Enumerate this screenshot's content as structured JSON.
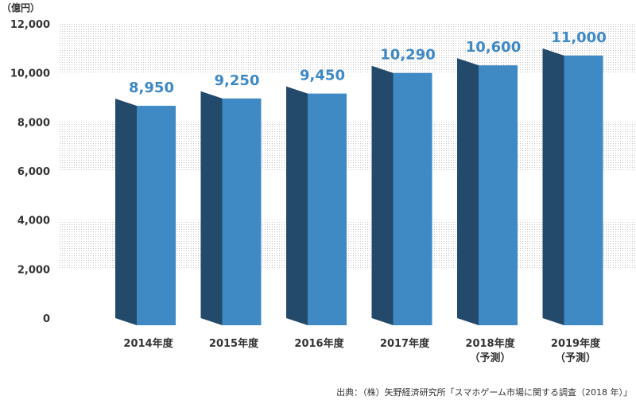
{
  "chart_data": {
    "type": "bar",
    "unit": "（億円）",
    "categories": [
      [
        "2014年度"
      ],
      [
        "2015年度"
      ],
      [
        "2016年度"
      ],
      [
        "2017年度"
      ],
      [
        "2018年度",
        "（予測）"
      ],
      [
        "2019年度",
        "（予測）"
      ]
    ],
    "values": [
      8950,
      9250,
      9450,
      10290,
      10600,
      11000
    ],
    "value_labels": [
      "8,950",
      "9,250",
      "9,450",
      "10,290",
      "10,600",
      "11,000"
    ],
    "ylim": [
      0,
      12000
    ],
    "yticks": [
      0,
      2000,
      4000,
      6000,
      8000,
      10000,
      12000
    ],
    "ytick_labels": [
      "0",
      "2,000",
      "4,000",
      "6,000",
      "8,000",
      "10,000",
      "12,000"
    ],
    "grid": "dotted horizontal bands",
    "title": "",
    "xlabel": "",
    "ylabel": ""
  },
  "source": "出典：（株）矢野経済研究所「スマホゲーム市場に関する調査（2018 年）」",
  "colors": {
    "bar_front": "#3f89c5",
    "bar_side": "#244a6b",
    "value_text": "#3f89c5",
    "grid_dot": "#c2c2c2"
  }
}
